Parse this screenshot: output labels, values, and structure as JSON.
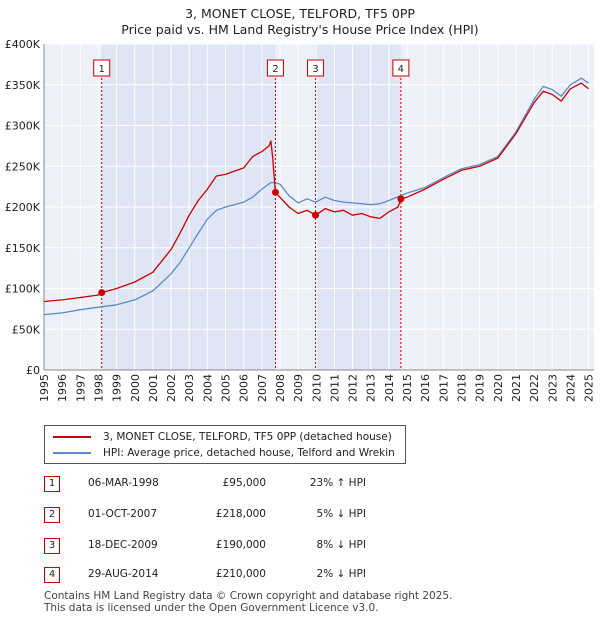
{
  "chart_data": {
    "type": "line",
    "title": "3, MONET CLOSE, TELFORD, TF5 0PP",
    "subtitle": "Price paid vs. HM Land Registry's House Price Index (HPI)",
    "x_range": [
      1995,
      2025.3
    ],
    "ylim": [
      0,
      400000
    ],
    "y_ticks": [
      0,
      50000,
      100000,
      150000,
      200000,
      250000,
      300000,
      350000,
      400000
    ],
    "y_tick_labels": [
      "£0",
      "£50K",
      "£100K",
      "£150K",
      "£200K",
      "£250K",
      "£300K",
      "£350K",
      "£400K"
    ],
    "x_ticks": [
      "1995",
      "1996",
      "1997",
      "1998",
      "1999",
      "2000",
      "2001",
      "2002",
      "2003",
      "2004",
      "2005",
      "2006",
      "2007",
      "2008",
      "2009",
      "2010",
      "2011",
      "2012",
      "2013",
      "2014",
      "2015",
      "2016",
      "2017",
      "2018",
      "2019",
      "2020",
      "2021",
      "2022",
      "2023",
      "2024",
      "2025"
    ],
    "grid": true,
    "series": [
      {
        "name": "3, MONET CLOSE, TELFORD, TF5 0PP (detached house)",
        "color": "#cc0000",
        "points": [
          [
            1995.0,
            84000
          ],
          [
            1996.0,
            86000
          ],
          [
            1997.0,
            89000
          ],
          [
            1998.0,
            92000
          ],
          [
            1998.18,
            95000
          ],
          [
            1999.0,
            100000
          ],
          [
            2000.0,
            108000
          ],
          [
            2001.0,
            120000
          ],
          [
            2002.0,
            148000
          ],
          [
            2002.5,
            168000
          ],
          [
            2003.0,
            190000
          ],
          [
            2003.5,
            208000
          ],
          [
            2004.0,
            222000
          ],
          [
            2004.5,
            238000
          ],
          [
            2005.0,
            240000
          ],
          [
            2005.5,
            244000
          ],
          [
            2006.0,
            248000
          ],
          [
            2006.5,
            262000
          ],
          [
            2007.0,
            268000
          ],
          [
            2007.4,
            275000
          ],
          [
            2007.5,
            281000
          ],
          [
            2007.6,
            260000
          ],
          [
            2007.75,
            218000
          ],
          [
            2008.0,
            212000
          ],
          [
            2008.5,
            200000
          ],
          [
            2009.0,
            192000
          ],
          [
            2009.5,
            196000
          ],
          [
            2009.96,
            190000
          ],
          [
            2010.5,
            198000
          ],
          [
            2011.0,
            194000
          ],
          [
            2011.5,
            196000
          ],
          [
            2012.0,
            190000
          ],
          [
            2012.5,
            192000
          ],
          [
            2013.0,
            188000
          ],
          [
            2013.5,
            186000
          ],
          [
            2014.0,
            194000
          ],
          [
            2014.5,
            200000
          ],
          [
            2014.66,
            210000
          ],
          [
            2015.0,
            212000
          ],
          [
            2016.0,
            222000
          ],
          [
            2017.0,
            234000
          ],
          [
            2018.0,
            245000
          ],
          [
            2019.0,
            250000
          ],
          [
            2020.0,
            260000
          ],
          [
            2021.0,
            290000
          ],
          [
            2022.0,
            328000
          ],
          [
            2022.5,
            342000
          ],
          [
            2023.0,
            338000
          ],
          [
            2023.5,
            330000
          ],
          [
            2024.0,
            345000
          ],
          [
            2024.6,
            352000
          ],
          [
            2025.0,
            345000
          ]
        ]
      },
      {
        "name": "HPI: Average price, detached house, Telford and Wrekin",
        "color": "#5b8cc8",
        "points": [
          [
            1995.0,
            68000
          ],
          [
            1996.0,
            70000
          ],
          [
            1997.0,
            74000
          ],
          [
            1998.0,
            77000
          ],
          [
            1999.0,
            80000
          ],
          [
            2000.0,
            86000
          ],
          [
            2001.0,
            97000
          ],
          [
            2002.0,
            118000
          ],
          [
            2002.5,
            132000
          ],
          [
            2003.0,
            150000
          ],
          [
            2003.5,
            168000
          ],
          [
            2004.0,
            185000
          ],
          [
            2004.5,
            196000
          ],
          [
            2005.0,
            200000
          ],
          [
            2005.5,
            203000
          ],
          [
            2006.0,
            206000
          ],
          [
            2006.5,
            212000
          ],
          [
            2007.0,
            222000
          ],
          [
            2007.5,
            230000
          ],
          [
            2007.75,
            230000
          ],
          [
            2008.0,
            228000
          ],
          [
            2008.5,
            214000
          ],
          [
            2009.0,
            205000
          ],
          [
            2009.5,
            210000
          ],
          [
            2009.96,
            206000
          ],
          [
            2010.5,
            212000
          ],
          [
            2011.0,
            208000
          ],
          [
            2011.5,
            206000
          ],
          [
            2012.0,
            205000
          ],
          [
            2012.5,
            204000
          ],
          [
            2013.0,
            203000
          ],
          [
            2013.5,
            204000
          ],
          [
            2014.0,
            208000
          ],
          [
            2014.66,
            214000
          ],
          [
            2015.0,
            217000
          ],
          [
            2016.0,
            224000
          ],
          [
            2017.0,
            236000
          ],
          [
            2018.0,
            247000
          ],
          [
            2019.0,
            252000
          ],
          [
            2020.0,
            262000
          ],
          [
            2021.0,
            292000
          ],
          [
            2022.0,
            332000
          ],
          [
            2022.5,
            348000
          ],
          [
            2023.0,
            344000
          ],
          [
            2023.5,
            336000
          ],
          [
            2024.0,
            350000
          ],
          [
            2024.6,
            358000
          ],
          [
            2025.0,
            352000
          ]
        ]
      }
    ],
    "markers": [
      {
        "label": "1",
        "x": 1998.18,
        "y": 95000
      },
      {
        "label": "2",
        "x": 2007.75,
        "y": 218000
      },
      {
        "label": "3",
        "x": 2009.96,
        "y": 190000
      },
      {
        "label": "4",
        "x": 2014.66,
        "y": 210000
      }
    ],
    "shaded_regions": [
      [
        1998.18,
        2007.75
      ],
      [
        2009.96,
        2014.66
      ]
    ],
    "colors": {
      "plot_background": "#eef0f7",
      "shade": "#dfe5f5",
      "grid": "#ffffff",
      "marker": "#cc0000"
    }
  },
  "legend": {
    "items": [
      {
        "label": "3, MONET CLOSE, TELFORD, TF5 0PP (detached house)",
        "color": "#cc0000"
      },
      {
        "label": "HPI: Average price, detached house, Telford and Wrekin",
        "color": "#5b8cc8"
      }
    ]
  },
  "transactions": [
    {
      "num": "1",
      "date": "06-MAR-1998",
      "price": "£95,000",
      "hpi": "23% ↑ HPI"
    },
    {
      "num": "2",
      "date": "01-OCT-2007",
      "price": "£218,000",
      "hpi": "5% ↓ HPI"
    },
    {
      "num": "3",
      "date": "18-DEC-2009",
      "price": "£190,000",
      "hpi": "8% ↓ HPI"
    },
    {
      "num": "4",
      "date": "29-AUG-2014",
      "price": "£210,000",
      "hpi": "2% ↓ HPI"
    }
  ],
  "footer": {
    "line1": "Contains HM Land Registry data © Crown copyright and database right 2025.",
    "line2": "This data is licensed under the Open Government Licence v3.0."
  }
}
